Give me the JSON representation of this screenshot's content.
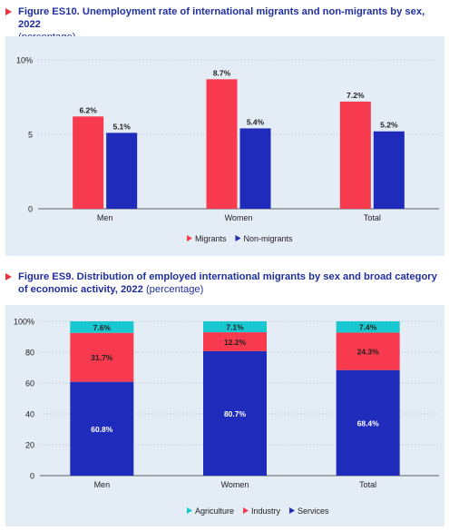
{
  "colors": {
    "migrants": "#f73a4e",
    "non_migrants": "#1e2bbb",
    "agriculture": "#18c7cf",
    "industry": "#f73a4e",
    "services": "#1e2bbb",
    "title_arrow": "#e8323e",
    "title_text": "#1f2fa0",
    "panel_bg": "#e4ecf6"
  },
  "fig1": {
    "title": "Figure ES10.  Unemployment rate of international migrants and non-migrants by sex, 2022",
    "subtitle": "(percentage)"
  },
  "fig2": {
    "title": "Figure ES9.  Distribution of employed international migrants by sex and broad category of economic activity, 2022",
    "subtitle": "(percentage)"
  },
  "chart_data": [
    {
      "type": "bar",
      "title": "Figure ES10.  Unemployment rate of international migrants and non-migrants by sex, 2022",
      "categories": [
        "Men",
        "Women",
        "Total"
      ],
      "series": [
        {
          "name": "Migrants",
          "values": [
            6.2,
            8.7,
            7.2
          ],
          "labels": [
            "6.2%",
            "8.7%",
            "7.2%"
          ]
        },
        {
          "name": "Non-migrants",
          "values": [
            5.1,
            5.4,
            5.2
          ],
          "labels": [
            "5.1%",
            "5.4%",
            "5.2%"
          ]
        }
      ],
      "ylim": [
        0,
        10
      ],
      "yticks": [
        0,
        5,
        10
      ],
      "ytick_labels": [
        "0",
        "5",
        "10%"
      ],
      "grid": true,
      "legend": "bottom-center"
    },
    {
      "type": "bar",
      "stacked": true,
      "title": "Figure ES9.  Distribution of employed international migrants by sex and broad category of economic activity, 2022",
      "categories": [
        "Men",
        "Women",
        "Total"
      ],
      "series": [
        {
          "name": "Services",
          "values": [
            60.8,
            80.7,
            68.4
          ],
          "labels": [
            "60.8%",
            "80.7%",
            "68.4%"
          ]
        },
        {
          "name": "Industry",
          "values": [
            31.7,
            12.2,
            24.3
          ],
          "labels": [
            "31.7%",
            "12.2%",
            "24.3%"
          ]
        },
        {
          "name": "Agriculture",
          "values": [
            7.6,
            7.1,
            7.4
          ],
          "labels": [
            "7.6%",
            "7.1%",
            "7.4%"
          ]
        }
      ],
      "legend_order": [
        "Agriculture",
        "Industry",
        "Services"
      ],
      "ylim": [
        0,
        100
      ],
      "yticks": [
        0,
        20,
        40,
        60,
        80,
        100
      ],
      "ytick_labels": [
        "0",
        "20",
        "40",
        "60",
        "80",
        "100%"
      ],
      "grid": true,
      "legend": "bottom-center"
    }
  ]
}
